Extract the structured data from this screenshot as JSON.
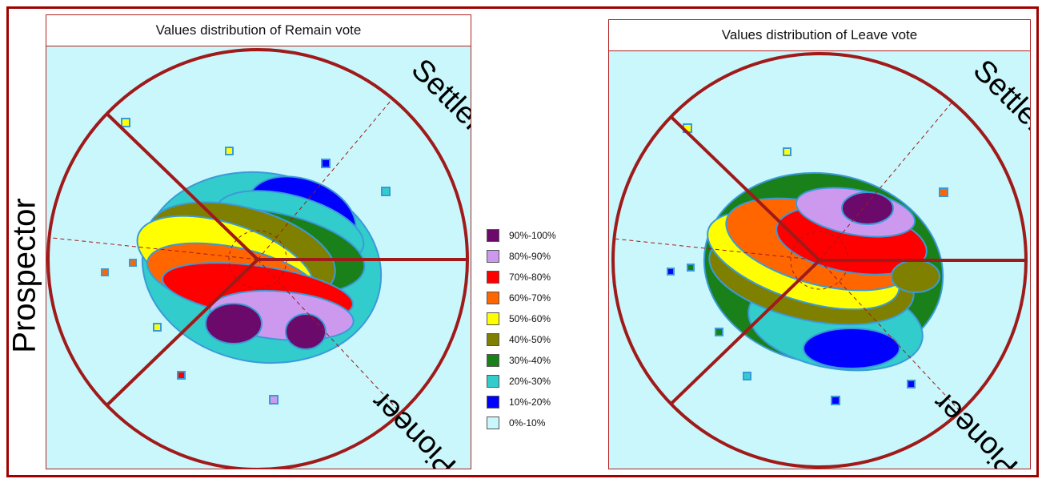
{
  "chart_data": [
    {
      "type": "heatmap",
      "title": "Values distribution of Remain vote",
      "segment_labels": [
        "Settler",
        "Prospector",
        "Pioneer"
      ],
      "ranges": [
        "90%-100%",
        "80%-90%",
        "70%-80%",
        "60%-70%",
        "50%-60%",
        "40%-50%",
        "30%-40%",
        "20%-30%",
        "10%-20%",
        "0%-10%"
      ],
      "colors": [
        "#6b0a6b",
        "#cc99ee",
        "#ff0000",
        "#ff6600",
        "#ffff00",
        "#808000",
        "#1a801a",
        "#33cccc",
        "#0000ff",
        "#c9f7fb"
      ],
      "grid_on": false,
      "legend_position": "between panels"
    },
    {
      "type": "heatmap",
      "title": "Values distribution of Leave vote",
      "segment_labels": [
        "Settler",
        "Prospector",
        "Pioneer"
      ],
      "ranges": [
        "90%-100%",
        "80%-90%",
        "70%-80%",
        "60%-70%",
        "50%-60%",
        "40%-50%",
        "30%-40%",
        "20%-30%",
        "10%-20%",
        "0%-10%"
      ],
      "colors": [
        "#6b0a6b",
        "#cc99ee",
        "#ff0000",
        "#ff6600",
        "#ffff00",
        "#808000",
        "#1a801a",
        "#33cccc",
        "#0000ff",
        "#c9f7fb"
      ],
      "grid_on": false,
      "legend_position": "between panels"
    }
  ],
  "labels": {
    "left_axis": "Prospector"
  },
  "legend": {
    "items": [
      {
        "label": "90%-100%",
        "color": "#6b0a6b"
      },
      {
        "label": "80%-90%",
        "color": "#cc99ee"
      },
      {
        "label": "70%-80%",
        "color": "#ff0000"
      },
      {
        "label": "60%-70%",
        "color": "#ff6600"
      },
      {
        "label": "50%-60%",
        "color": "#ffff00"
      },
      {
        "label": "40%-50%",
        "color": "#808000"
      },
      {
        "label": "30%-40%",
        "color": "#1a801a"
      },
      {
        "label": "20%-30%",
        "color": "#33cccc"
      },
      {
        "label": "10%-20%",
        "color": "#0000ff"
      },
      {
        "label": "0%-10%",
        "color": "#c9f7fb"
      }
    ]
  },
  "colors": {
    "frame": "#a00000",
    "circle": "#a01a1a",
    "background": "#c9f7fb"
  }
}
